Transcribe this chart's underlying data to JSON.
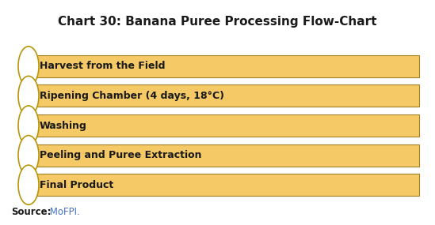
{
  "title": "Chart 30: Banana Puree Processing Flow-Chart",
  "title_fontsize": 11,
  "title_fontweight": "bold",
  "title_color": "#1a1a1a",
  "steps": [
    "Harvest from the Field",
    "Ripening Chamber (4 days, 18°C)",
    "Washing",
    "Peeling and Puree Extraction",
    "Final Product"
  ],
  "bar_facecolor": "#F5C966",
  "bar_edgecolor": "#A08020",
  "circle_facecolor": "#FFFFFF",
  "circle_edgecolor": "#B8960A",
  "text_color": "#1a1a1a",
  "text_fontsize": 9,
  "text_fontweight": "bold",
  "source_label_bold": "Source:",
  "source_text": " MoFPI.",
  "source_color_bold": "#1a1a1a",
  "source_color_text": "#4472C4",
  "source_fontsize": 8.5,
  "background_color": "#FFFFFF",
  "fig_width": 5.49,
  "fig_height": 2.85,
  "dpi": 100
}
